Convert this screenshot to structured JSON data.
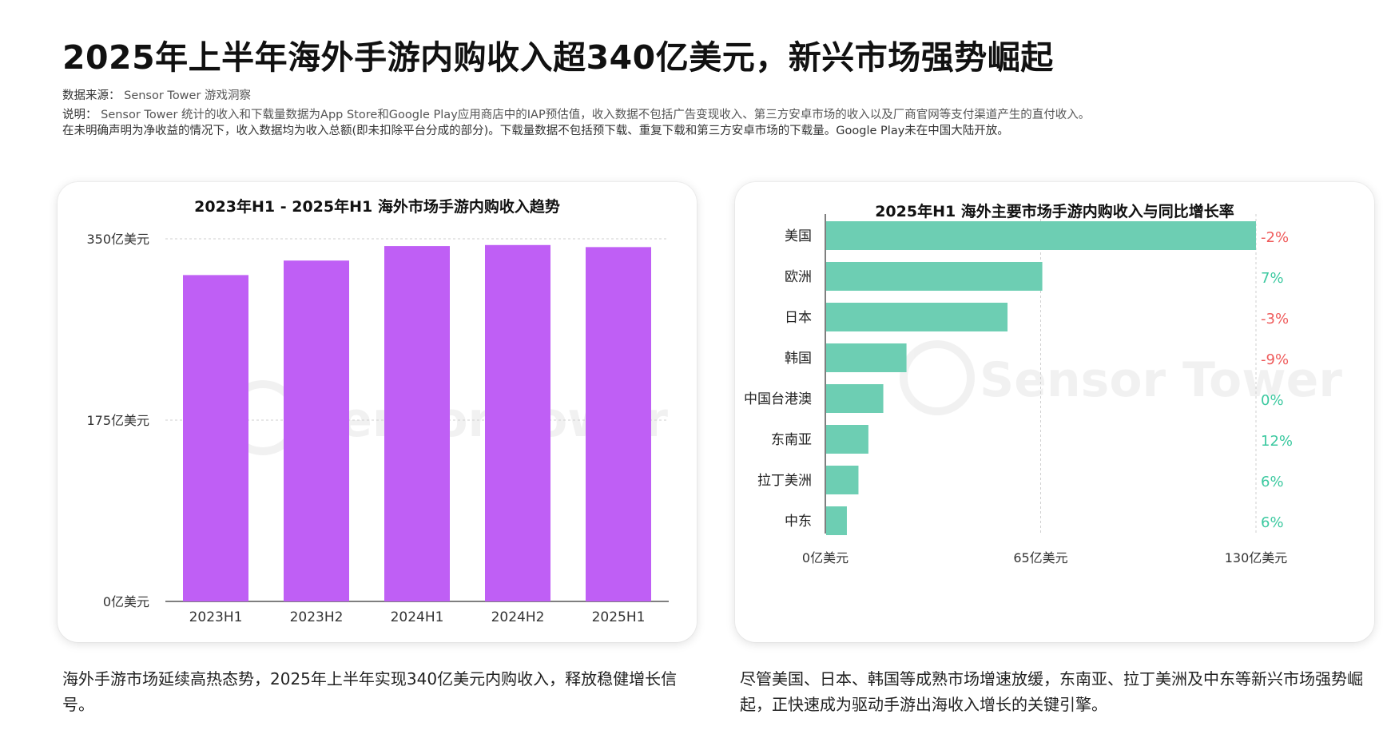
{
  "page": {
    "title": "2025年上半年海外手游内购收入超340亿美元，新兴市场强势崛起",
    "source_label": "数据来源：",
    "source_value": "Sensor Tower 游戏洞察",
    "note_label": "说明：",
    "note_line1": "Sensor Tower 统计的收入和下载量数据为App Store和Google Play应用商店中的IAP预估值，收入数据不包括广告变现收入、第三方安卓市场的收入以及厂商官网等支付渠道产生的直付收入。",
    "note_line2": "在未明确声明为净收益的情况下，收入数据均为收入总额(即未扣除平台分成的部分)。下载量数据不包括预下载、重复下载和第三方安卓市场的下载量。Google Play未在中国大陆开放。",
    "watermark_text": "Sensor Tower",
    "caption_left": "海外手游市场延续高热态势，2025年上半年实现340亿美元内购收入，释放稳健增长信号。",
    "caption_right": "尽管美国、日本、韩国等成熟市场增速放缓，东南亚、拉丁美洲及中东等新兴市场强势崛起，正快速成为驱动手游出海收入增长的关键引擎。"
  },
  "chart_data": [
    {
      "type": "bar",
      "title": "2023年H1 - 2025年H1 海外市场手游内购收入趋势",
      "categories": [
        "2023H1",
        "2023H2",
        "2024H1",
        "2024H2",
        "2025H1"
      ],
      "values": [
        315,
        329,
        343,
        344,
        342
      ],
      "ylim": [
        0,
        350
      ],
      "yticks": [
        0,
        175,
        350
      ],
      "ytick_labels": [
        "0亿美元",
        "175亿美元",
        "350亿美元"
      ],
      "color": "#bf5ff5",
      "grid": true
    },
    {
      "type": "bar",
      "orientation": "horizontal",
      "title": "2025年H1 海外主要市场手游内购收入与同比增长率",
      "categories": [
        "美国",
        "欧洲",
        "日本",
        "韩国",
        "中国台港澳",
        "东南亚",
        "拉丁美洲",
        "中东"
      ],
      "values": [
        130,
        65.5,
        55,
        24.5,
        17.5,
        13,
        10,
        6.5
      ],
      "growth_labels": [
        "-2%",
        "7%",
        "-3%",
        "-9%",
        "0%",
        "12%",
        "6%",
        "6%"
      ],
      "growth_colors": [
        "#ef5b5b",
        "#3cc9a0",
        "#ef5b5b",
        "#ef5b5b",
        "#3cc9a0",
        "#3cc9a0",
        "#3cc9a0",
        "#3cc9a0"
      ],
      "xlim": [
        0,
        130
      ],
      "xticks": [
        0,
        65,
        130
      ],
      "xtick_labels": [
        "0亿美元",
        "65亿美元",
        "130亿美元"
      ],
      "color": "#6dceb3",
      "grid": true
    }
  ]
}
